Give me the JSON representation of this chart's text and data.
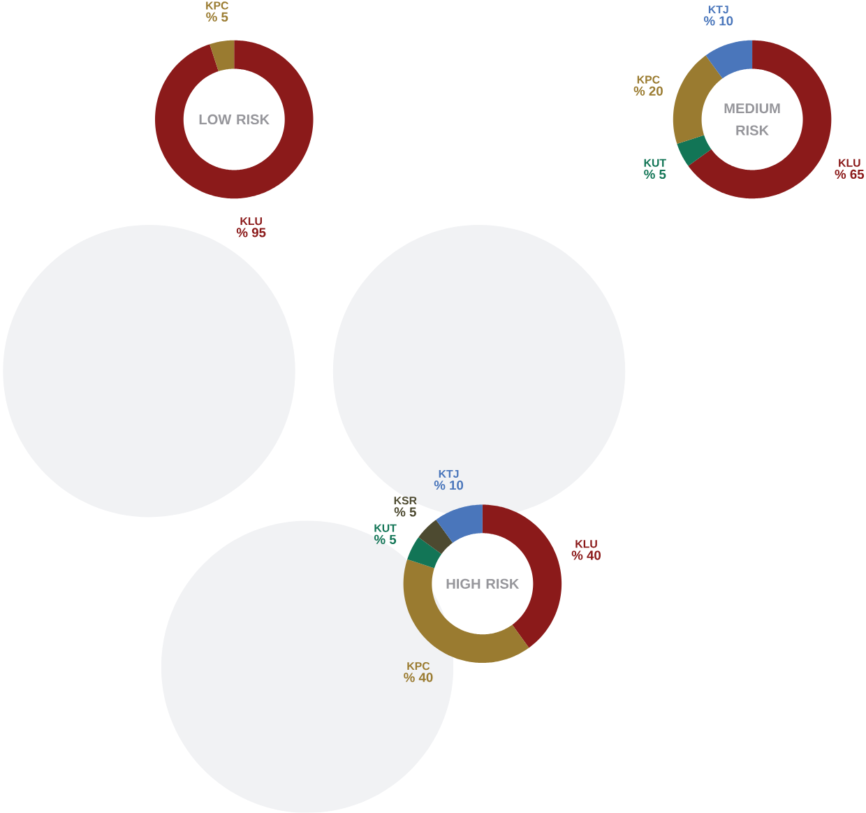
{
  "chart_data": [
    {
      "type": "donut",
      "title": "LOW RISK",
      "categories": [
        "KLU",
        "KPC"
      ],
      "values": [
        95,
        5
      ],
      "colors": [
        "#8b1a1a",
        "#9a7b30"
      ],
      "value_labels": [
        "% 95",
        "% 5"
      ]
    },
    {
      "type": "donut",
      "title": "MEDIUM RISK",
      "categories": [
        "KLU",
        "KUT",
        "KPC",
        "KTJ"
      ],
      "values": [
        65,
        5,
        20,
        10
      ],
      "colors": [
        "#8b1a1a",
        "#127556",
        "#9a7b30",
        "#4a76bb"
      ],
      "value_labels": [
        "% 65",
        "% 5",
        "% 20",
        "% 10"
      ]
    },
    {
      "type": "donut",
      "title": "HIGH RISK",
      "categories": [
        "KLU",
        "KPC",
        "KUT",
        "KSR",
        "KTJ"
      ],
      "values": [
        40,
        40,
        5,
        5,
        10
      ],
      "colors": [
        "#8b1a1a",
        "#9a7b30",
        "#127556",
        "#4d4a30",
        "#4a76bb"
      ],
      "value_labels": [
        "% 40",
        "% 40",
        "% 5",
        "% 5",
        "% 10"
      ]
    }
  ]
}
